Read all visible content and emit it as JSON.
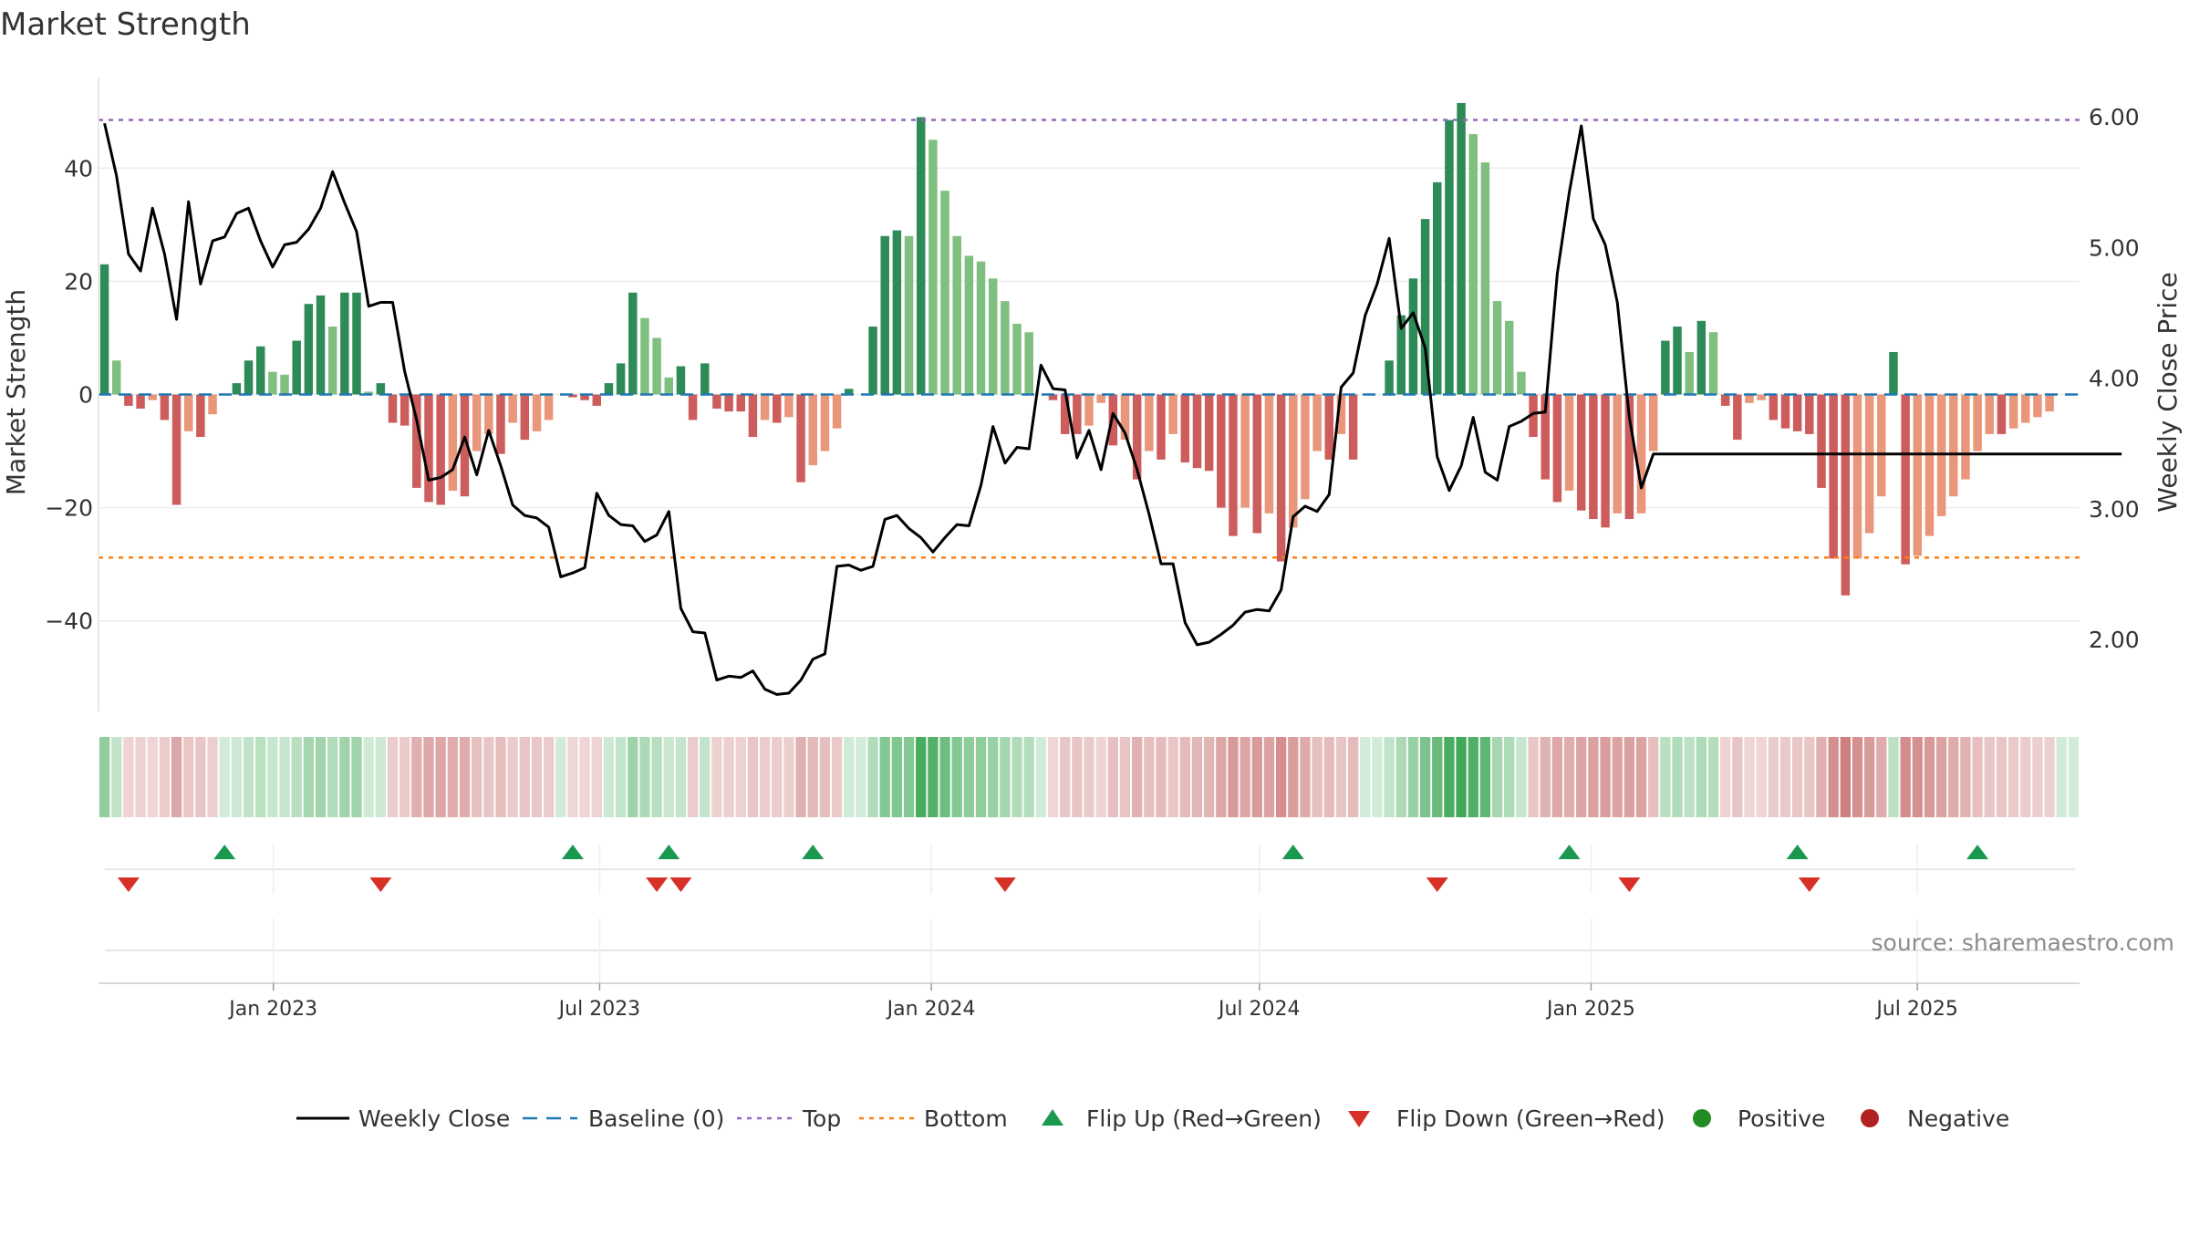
{
  "chart_data": {
    "type": "bar",
    "title": "Market Strength",
    "ylabel_left": "Market Strength",
    "ylabel_right": "Weekly Close Price",
    "source": "source: sharemaestro.com",
    "left_axis": {
      "range": [
        -56,
        56
      ],
      "ticks": [
        40,
        20,
        0,
        -20,
        -40
      ],
      "tick_labels": [
        "40",
        "20",
        "0",
        "−20",
        "−40"
      ]
    },
    "right_axis": {
      "range": [
        1.45,
        6.3
      ],
      "ticks": [
        6.0,
        5.0,
        4.0,
        3.0,
        2.0
      ],
      "tick_labels": [
        "6.00",
        "5.00",
        "4.00",
        "3.00",
        "2.00"
      ]
    },
    "x_axis": {
      "start": "2022-09-26",
      "end": "2025-09-29",
      "tick_dates": [
        "2023-01-01",
        "2023-07-01",
        "2024-01-01",
        "2024-07-01",
        "2025-01-01",
        "2025-07-01"
      ],
      "tick_labels": [
        "Jan 2023",
        "Jul 2023",
        "Jan 2024",
        "Jul 2024",
        "Jan 2025",
        "Jul 2025"
      ]
    },
    "reference_lines": {
      "baseline": 0,
      "top": 48.5,
      "bottom": -28.8
    },
    "colors": {
      "pos_strong": "#2e8b57",
      "pos_weak": "#7fbf7f",
      "neg_strong": "#cd5c5c",
      "neg_weak": "#e9967a",
      "price": "#000000",
      "baseline": "#1f77b4",
      "top": "#9467bd",
      "bottom": "#ff7f0e",
      "flip_up": "#1a9850",
      "flip_down": "#d73027",
      "positive": "#228b22",
      "negative": "#b22222"
    },
    "strength": [
      23,
      6,
      -2,
      -2.5,
      -1,
      -4.5,
      -19.5,
      -6.5,
      -7.5,
      -3.5,
      0,
      2,
      6,
      8.5,
      4,
      3.5,
      9.5,
      16,
      17.5,
      12,
      18,
      18,
      0.5,
      2,
      -5,
      -5.5,
      -16.5,
      -19,
      -19.5,
      -17,
      -18,
      -10,
      -7,
      -10.5,
      -5,
      -8,
      -6.5,
      -4.5,
      0,
      -0.5,
      -1,
      -2,
      2,
      5.5,
      18,
      13.5,
      10,
      3,
      5,
      -4.5,
      5.5,
      -2.5,
      -3,
      -3,
      -7.5,
      -4.5,
      -5,
      -4,
      -15.5,
      -12.5,
      -10,
      -6,
      1,
      0,
      12,
      28,
      29,
      28,
      49,
      45,
      36,
      28,
      24.5,
      23.5,
      20.5,
      16.5,
      12.5,
      11,
      0,
      -1,
      -7,
      -7,
      -5.5,
      -1.5,
      -9,
      -8,
      -15,
      -10,
      -11.5,
      -7,
      -12,
      -13,
      -13.5,
      -20,
      -25,
      -20,
      -24.5,
      -21,
      -29.5,
      -23.5,
      -18.5,
      -10,
      -11.5,
      -7,
      -11.5,
      0,
      0,
      6,
      14,
      20.5,
      31,
      37.5,
      48.5,
      51.5,
      46,
      41,
      16.5,
      13,
      4,
      -7.5,
      -15,
      -19,
      -17,
      -20.5,
      -22,
      -23.5,
      -21,
      -22,
      -21,
      -10,
      9.5,
      12,
      7.5,
      13,
      11,
      -2,
      -8,
      -1.5,
      -1,
      -4.5,
      -6,
      -6.5,
      -7,
      -16.5,
      -29,
      -35.5,
      -29,
      -24.5,
      -18,
      7.5,
      -30,
      -28.5,
      -25,
      -21.5,
      -18,
      -15,
      -10,
      -7,
      -7,
      -6,
      -5,
      -4,
      -3,
      0,
      0
    ],
    "weekly_close": [
      5.95,
      5.55,
      4.95,
      4.82,
      5.3,
      4.95,
      4.45,
      5.35,
      4.72,
      5.05,
      5.08,
      5.26,
      5.3,
      5.05,
      4.85,
      5.02,
      5.04,
      5.14,
      5.3,
      5.58,
      5.34,
      5.12,
      4.55,
      4.58,
      4.58,
      4.05,
      3.68,
      3.22,
      3.24,
      3.3,
      3.55,
      3.26,
      3.6,
      3.33,
      3.03,
      2.95,
      2.93,
      2.86,
      2.48,
      2.51,
      2.55,
      3.12,
      2.95,
      2.88,
      2.87,
      2.75,
      2.8,
      2.98,
      2.24,
      2.06,
      2.05,
      1.69,
      1.72,
      1.71,
      1.76,
      1.62,
      1.58,
      1.59,
      1.69,
      1.85,
      1.89,
      2.56,
      2.57,
      2.53,
      2.56,
      2.92,
      2.95,
      2.85,
      2.78,
      2.67,
      2.78,
      2.88,
      2.87,
      3.18,
      3.63,
      3.35,
      3.47,
      3.46,
      4.1,
      3.92,
      3.91,
      3.39,
      3.6,
      3.3,
      3.73,
      3.58,
      3.3,
      2.96,
      2.58,
      2.58,
      2.13,
      1.96,
      1.98,
      2.04,
      2.11,
      2.21,
      2.23,
      2.22,
      2.38,
      2.94,
      3.02,
      2.98,
      3.11,
      3.93,
      4.04,
      4.48,
      4.72,
      5.07,
      4.38,
      4.5,
      4.23,
      3.4,
      3.14,
      3.33,
      3.7,
      3.28,
      3.22,
      3.63,
      3.67,
      3.73,
      3.74,
      4.8,
      5.42,
      5.93,
      5.22,
      5.02,
      4.58,
      3.7,
      3.16,
      3.42,
      3.42,
      3.42,
      3.42,
      3.42,
      3.42,
      3.42,
      3.42,
      3.42,
      3.42,
      3.42,
      3.42,
      3.42,
      3.42,
      3.42,
      3.42,
      3.42,
      3.42,
      3.42,
      3.42,
      3.42,
      3.42,
      3.42,
      3.42,
      3.42,
      3.42,
      3.42,
      3.42,
      3.42,
      3.42,
      3.42,
      3.42,
      3.42,
      3.42,
      3.42,
      3.42,
      3.42,
      3.42,
      3.42,
      3.42
    ],
    "flip_up_weeks": [
      10,
      39,
      47,
      59,
      99,
      122,
      141,
      156
    ],
    "flip_down_weeks": [
      2,
      23,
      46,
      48,
      75,
      111,
      127,
      142
    ],
    "legend": {
      "items": [
        {
          "key": "weekly_close",
          "label": "Weekly Close",
          "kind": "line"
        },
        {
          "key": "baseline",
          "label": "Baseline (0)",
          "kind": "dash"
        },
        {
          "key": "top",
          "label": "Top",
          "kind": "dot"
        },
        {
          "key": "bottom",
          "label": "Bottom",
          "kind": "dot"
        },
        {
          "key": "flip_up",
          "label": "Flip Up (Red→Green)",
          "kind": "tri-up"
        },
        {
          "key": "flip_down",
          "label": "Flip Down (Green→Red)",
          "kind": "tri-down"
        },
        {
          "key": "positive",
          "label": "Positive",
          "kind": "circle"
        },
        {
          "key": "negative",
          "label": "Negative",
          "kind": "circle"
        }
      ],
      "placement": "bottom-center"
    }
  }
}
